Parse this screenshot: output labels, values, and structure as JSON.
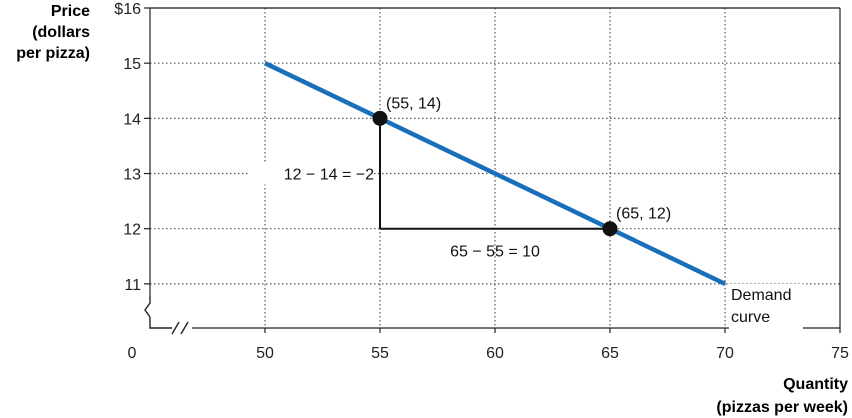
{
  "chart_data": {
    "type": "line",
    "title": "",
    "ylabel_lines": [
      "Price",
      "(dollars",
      "per pizza)"
    ],
    "xlabel_lines": [
      "Quantity",
      "(pizzas per week)"
    ],
    "origin_label": "0",
    "xlim": [
      45,
      75
    ],
    "ylim": [
      10.2,
      16
    ],
    "x_ticks": [
      {
        "value": 50,
        "label": "50"
      },
      {
        "value": 55,
        "label": "55"
      },
      {
        "value": 60,
        "label": "60"
      },
      {
        "value": 65,
        "label": "65"
      },
      {
        "value": 70,
        "label": "70"
      },
      {
        "value": 75,
        "label": "75"
      }
    ],
    "y_ticks": [
      {
        "value": 11,
        "label": "11"
      },
      {
        "value": 12,
        "label": "12"
      },
      {
        "value": 13,
        "label": "13"
      },
      {
        "value": 14,
        "label": "14"
      },
      {
        "value": 15,
        "label": "15"
      },
      {
        "value": 16,
        "label": "$16"
      }
    ],
    "grid": true,
    "series": [
      {
        "name": "Demand curve",
        "label_lines": [
          "Demand",
          "curve"
        ],
        "color": "#1a6fba",
        "x": [
          50,
          70
        ],
        "y": [
          15,
          11
        ]
      }
    ],
    "points": [
      {
        "x": 55,
        "y": 14,
        "label": "(55, 14)"
      },
      {
        "x": 65,
        "y": 12,
        "label": "(65, 12)"
      }
    ],
    "annotations": {
      "rise": "12 − 14 = −2",
      "run": "65 − 55 = 10"
    },
    "axis_break": true
  }
}
